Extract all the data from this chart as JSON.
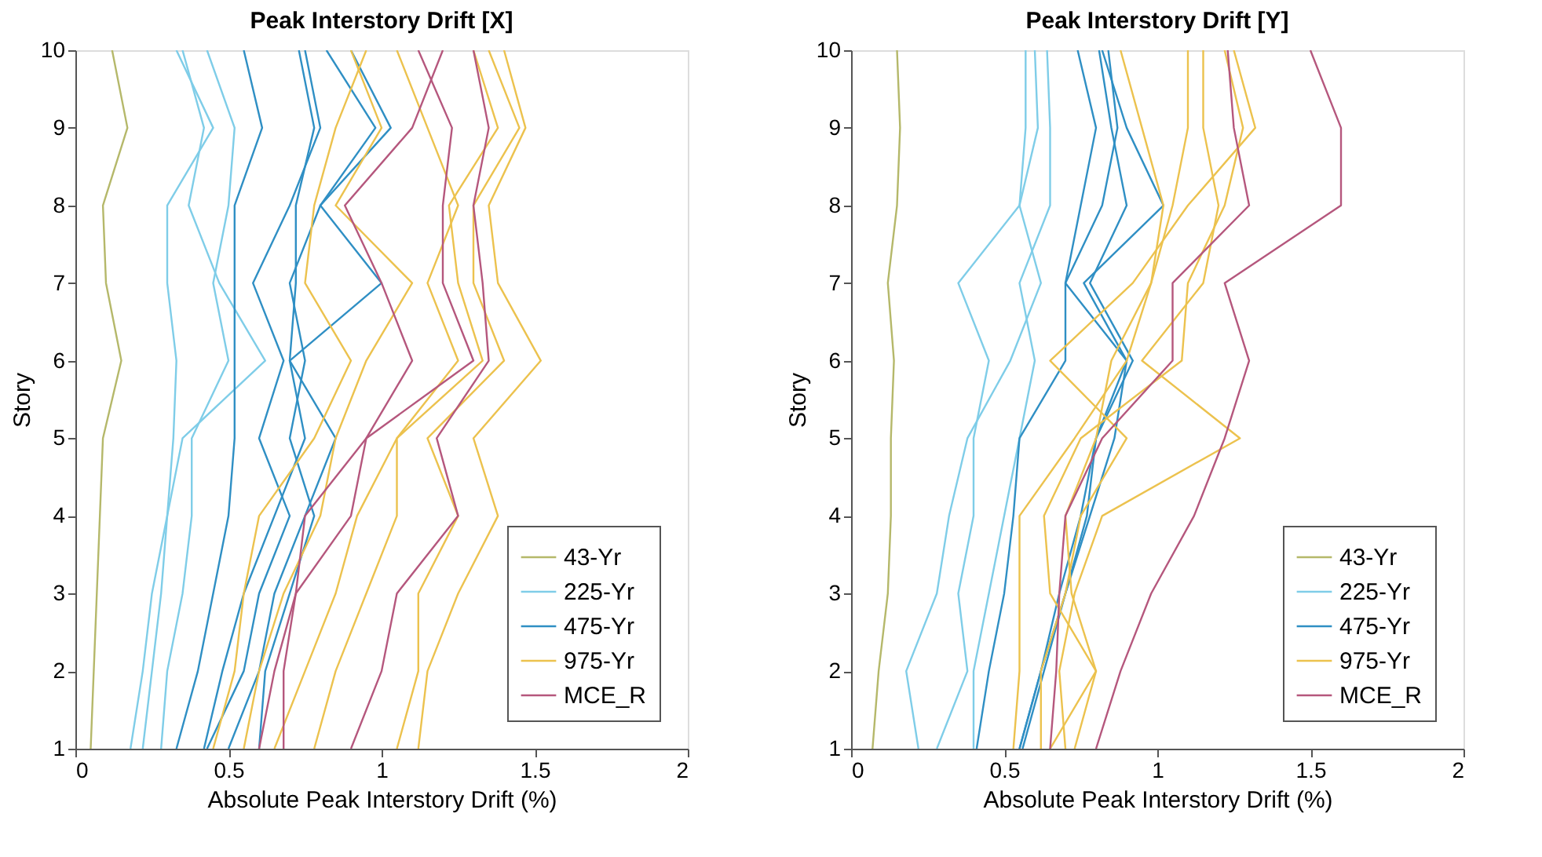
{
  "chart_data": [
    {
      "type": "line",
      "title": "Peak Interstory Drift [X]",
      "xlabel": "Absolute Peak Interstory Drift (%)",
      "ylabel": "Story",
      "xlim": [
        0,
        2
      ],
      "xticks": [
        0,
        0.5,
        1,
        1.5,
        2
      ],
      "ylim": [
        1,
        10
      ],
      "yticks": [
        1,
        2,
        3,
        4,
        5,
        6,
        7,
        8,
        9,
        10
      ],
      "grid": false,
      "legend": "bottom right",
      "series": [
        {
          "name": "43-Yr",
          "color": "#b5b86a",
          "x": [
            0.05,
            0.06,
            0.07,
            0.08,
            0.09,
            0.15,
            0.1,
            0.09,
            0.17,
            0.12
          ],
          "values": [
            1,
            2,
            3,
            4,
            5,
            6,
            7,
            8,
            9,
            10
          ]
        },
        {
          "name": "225-Yr",
          "color": "#7fcde8",
          "x": [
            0.22,
            0.25,
            0.28,
            0.3,
            0.32,
            0.33,
            0.3,
            0.3,
            0.45,
            0.33
          ],
          "values": [
            1,
            2,
            3,
            4,
            5,
            6,
            7,
            8,
            9,
            10
          ]
        },
        {
          "color": "#7fcde8",
          "x": [
            0.18,
            0.22,
            0.25,
            0.3,
            0.35,
            0.62,
            0.47,
            0.37,
            0.42,
            0.35
          ],
          "values": [
            1,
            2,
            3,
            4,
            5,
            6,
            7,
            8,
            9,
            10
          ]
        },
        {
          "color": "#7fcde8",
          "x": [
            0.28,
            0.3,
            0.35,
            0.38,
            0.38,
            0.5,
            0.45,
            0.5,
            0.52,
            0.43
          ],
          "values": [
            1,
            2,
            3,
            4,
            5,
            6,
            7,
            8,
            9,
            10
          ]
        },
        {
          "name": "475-Yr",
          "color": "#2f8fc4",
          "x": [
            0.33,
            0.4,
            0.45,
            0.5,
            0.52,
            0.52,
            0.52,
            0.52,
            0.61,
            0.55
          ],
          "values": [
            1,
            2,
            3,
            4,
            5,
            6,
            7,
            8,
            9,
            10
          ]
        },
        {
          "color": "#2f8fc4",
          "x": [
            0.42,
            0.48,
            0.55,
            0.65,
            0.75,
            0.7,
            0.72,
            0.72,
            0.78,
            0.73
          ],
          "values": [
            1,
            2,
            3,
            4,
            5,
            6,
            7,
            8,
            9,
            10
          ]
        },
        {
          "color": "#2f8fc4",
          "x": [
            0.43,
            0.55,
            0.6,
            0.7,
            0.6,
            0.68,
            0.58,
            0.7,
            0.8,
            0.75
          ],
          "values": [
            1,
            2,
            3,
            4,
            5,
            6,
            7,
            8,
            9,
            10
          ]
        },
        {
          "color": "#2f8fc4",
          "x": [
            0.5,
            0.6,
            0.65,
            0.75,
            0.85,
            0.7,
            1.0,
            0.8,
            0.98,
            0.82
          ],
          "values": [
            1,
            2,
            3,
            4,
            5,
            6,
            7,
            8,
            9,
            10
          ]
        },
        {
          "color": "#2f8fc4",
          "x": [
            0.6,
            0.62,
            0.7,
            0.78,
            0.7,
            0.75,
            0.7,
            0.8,
            1.03,
            0.9
          ],
          "values": [
            1,
            2,
            3,
            4,
            5,
            6,
            7,
            8,
            9,
            10
          ]
        },
        {
          "name": "975-Yr",
          "color": "#ecc24e",
          "x": [
            0.45,
            0.52,
            0.55,
            0.6,
            0.78,
            0.9,
            0.75,
            0.78,
            0.85,
            0.95
          ],
          "values": [
            1,
            2,
            3,
            4,
            5,
            6,
            7,
            8,
            9,
            10
          ]
        },
        {
          "color": "#ecc24e",
          "x": [
            0.55,
            0.6,
            0.68,
            0.8,
            0.85,
            0.95,
            1.1,
            0.85,
            1.0,
            0.9
          ],
          "values": [
            1,
            2,
            3,
            4,
            5,
            6,
            7,
            8,
            9,
            10
          ]
        },
        {
          "color": "#ecc24e",
          "x": [
            0.78,
            0.85,
            0.95,
            1.05,
            1.05,
            1.25,
            1.15,
            1.25,
            1.15,
            1.05
          ],
          "values": [
            1,
            2,
            3,
            4,
            5,
            6,
            7,
            8,
            9,
            10
          ]
        },
        {
          "color": "#ecc24e",
          "x": [
            1.05,
            1.12,
            1.12,
            1.25,
            1.15,
            1.4,
            1.3,
            1.3,
            1.45,
            1.35
          ],
          "values": [
            1,
            2,
            3,
            4,
            5,
            6,
            7,
            8,
            9,
            10
          ]
        },
        {
          "color": "#ecc24e",
          "x": [
            0.65,
            0.75,
            0.85,
            0.92,
            1.05,
            1.33,
            1.25,
            1.22,
            1.38,
            1.3
          ],
          "values": [
            1,
            2,
            3,
            4,
            5,
            6,
            7,
            8,
            9,
            10
          ]
        },
        {
          "color": "#ecc24e",
          "x": [
            1.12,
            1.15,
            1.25,
            1.38,
            1.3,
            1.52,
            1.38,
            1.35,
            1.47,
            1.4
          ],
          "values": [
            1,
            2,
            3,
            4,
            5,
            6,
            7,
            8,
            9,
            10
          ]
        },
        {
          "name": "MCE_R",
          "color": "#b5577d",
          "x": [
            0.68,
            0.68,
            0.72,
            0.9,
            0.95,
            1.3,
            1.2,
            1.2,
            1.23,
            1.12
          ],
          "values": [
            1,
            2,
            3,
            4,
            5,
            6,
            7,
            8,
            9,
            10
          ]
        },
        {
          "color": "#b5577d",
          "x": [
            0.9,
            1.0,
            1.05,
            1.25,
            1.18,
            1.35,
            1.33,
            1.3,
            1.35,
            1.3
          ],
          "values": [
            1,
            2,
            3,
            4,
            5,
            6,
            7,
            8,
            9,
            10
          ]
        },
        {
          "color": "#b5577d",
          "x": [
            0.6,
            0.65,
            0.72,
            0.75,
            0.95,
            1.1,
            1.0,
            0.88,
            1.1,
            1.2
          ],
          "values": [
            1,
            2,
            3,
            4,
            5,
            6,
            7,
            8,
            9,
            10
          ]
        }
      ]
    },
    {
      "type": "line",
      "title": "Peak Interstory Drift [Y]",
      "xlabel": "Absolute Peak Interstory Drift (%)",
      "ylabel": "Story",
      "xlim": [
        0,
        2
      ],
      "xticks": [
        0,
        0.5,
        1,
        1.5,
        2
      ],
      "ylim": [
        1,
        10
      ],
      "yticks": [
        1,
        2,
        3,
        4,
        5,
        6,
        7,
        8,
        9,
        10
      ],
      "grid": false,
      "legend": "bottom right",
      "series": [
        {
          "name": "43-Yr",
          "color": "#b5b86a",
          "x": [
            0.07,
            0.09,
            0.12,
            0.13,
            0.13,
            0.14,
            0.12,
            0.15,
            0.16,
            0.15
          ],
          "values": [
            1,
            2,
            3,
            4,
            5,
            6,
            7,
            8,
            9,
            10
          ]
        },
        {
          "name": "225-Yr",
          "color": "#7fcde8",
          "x": [
            0.22,
            0.18,
            0.28,
            0.32,
            0.38,
            0.52,
            0.62,
            0.55,
            0.57,
            0.57
          ],
          "values": [
            1,
            2,
            3,
            4,
            5,
            6,
            7,
            8,
            9,
            10
          ]
        },
        {
          "color": "#7fcde8",
          "x": [
            0.28,
            0.38,
            0.35,
            0.4,
            0.4,
            0.45,
            0.35,
            0.55,
            0.61,
            0.6
          ],
          "values": [
            1,
            2,
            3,
            4,
            5,
            6,
            7,
            8,
            9,
            10
          ]
        },
        {
          "color": "#7fcde8",
          "x": [
            0.4,
            0.4,
            0.45,
            0.5,
            0.55,
            0.6,
            0.55,
            0.65,
            0.65,
            0.64
          ],
          "values": [
            1,
            2,
            3,
            4,
            5,
            6,
            7,
            8,
            9,
            10
          ]
        },
        {
          "name": "475-Yr",
          "color": "#2f8fc4",
          "x": [
            0.41,
            0.45,
            0.5,
            0.53,
            0.55,
            0.7,
            0.7,
            0.75,
            0.8,
            0.74
          ],
          "values": [
            1,
            2,
            3,
            4,
            5,
            6,
            7,
            8,
            9,
            10
          ]
        },
        {
          "color": "#2f8fc4",
          "x": [
            0.55,
            0.62,
            0.68,
            0.75,
            0.8,
            0.92,
            0.78,
            0.9,
            0.85,
            0.81
          ],
          "values": [
            1,
            2,
            3,
            4,
            5,
            6,
            7,
            8,
            9,
            10
          ]
        },
        {
          "color": "#2f8fc4",
          "x": [
            0.56,
            0.63,
            0.7,
            0.77,
            0.8,
            0.9,
            0.76,
            1.02,
            0.9,
            0.82
          ],
          "values": [
            1,
            2,
            3,
            4,
            5,
            6,
            7,
            8,
            9,
            10
          ]
        },
        {
          "color": "#2f8fc4",
          "x": [
            0.55,
            0.62,
            0.7,
            0.78,
            0.86,
            0.9,
            0.7,
            0.82,
            0.87,
            0.84
          ],
          "values": [
            1,
            2,
            3,
            4,
            5,
            6,
            7,
            8,
            9,
            10
          ]
        },
        {
          "name": "975-Yr",
          "color": "#ecc24e",
          "x": [
            0.65,
            0.8,
            0.72,
            0.7,
            0.8,
            0.85,
            0.98,
            1.02,
            0.95,
            0.88
          ],
          "values": [
            1,
            2,
            3,
            4,
            5,
            6,
            7,
            8,
            9,
            10
          ]
        },
        {
          "color": "#ecc24e",
          "x": [
            0.53,
            0.55,
            0.55,
            0.55,
            0.73,
            0.9,
            0.98,
            1.05,
            1.1,
            1.1
          ],
          "values": [
            1,
            2,
            3,
            4,
            5,
            6,
            7,
            8,
            9,
            10
          ]
        },
        {
          "color": "#ecc24e",
          "x": [
            0.7,
            0.68,
            0.73,
            0.82,
            1.27,
            0.95,
            1.15,
            1.2,
            1.15,
            1.15
          ],
          "values": [
            1,
            2,
            3,
            4,
            5,
            6,
            7,
            8,
            9,
            10
          ]
        },
        {
          "color": "#ecc24e",
          "x": [
            0.73,
            0.8,
            0.65,
            0.63,
            0.75,
            1.08,
            1.1,
            1.22,
            1.28,
            1.22
          ],
          "values": [
            1,
            2,
            3,
            4,
            5,
            6,
            7,
            8,
            9,
            10
          ]
        },
        {
          "color": "#ecc24e",
          "x": [
            0.62,
            0.62,
            0.7,
            0.75,
            0.9,
            0.65,
            0.92,
            1.1,
            1.32,
            1.25
          ],
          "values": [
            1,
            2,
            3,
            4,
            5,
            6,
            7,
            8,
            9,
            10
          ]
        },
        {
          "name": "MCE_R",
          "color": "#b5577d",
          "x": [
            0.65,
            0.67,
            0.68,
            0.7,
            0.82,
            1.05,
            1.05,
            1.3,
            1.25,
            1.23
          ],
          "values": [
            1,
            2,
            3,
            4,
            5,
            6,
            7,
            8,
            9,
            10
          ]
        },
        {
          "color": "#b5577d",
          "x": [
            0.8,
            0.88,
            0.98,
            1.12,
            1.22,
            1.3,
            1.22,
            1.6,
            1.6,
            1.5
          ],
          "values": [
            1,
            2,
            3,
            4,
            5,
            6,
            7,
            8,
            9,
            10
          ]
        }
      ]
    }
  ]
}
